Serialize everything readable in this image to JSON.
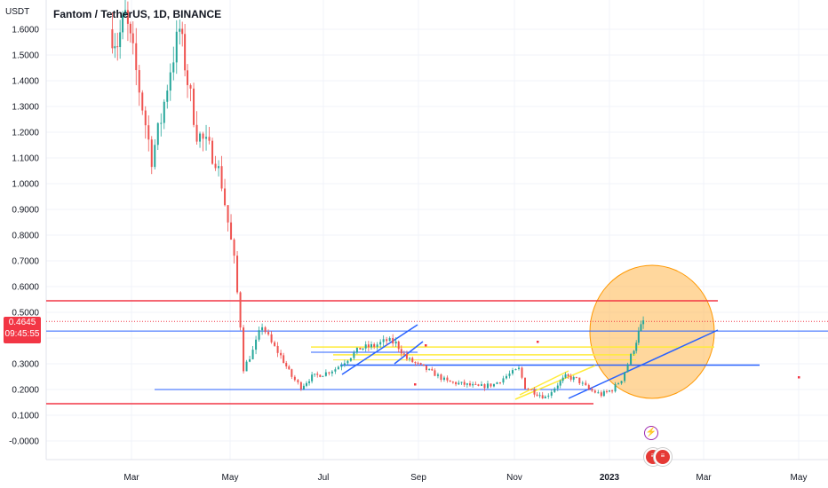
{
  "header": {
    "title": "Fantom / TetherUS, 1D, BINANCE",
    "currency": "USDT"
  },
  "price_tag": {
    "price": "0.4645",
    "countdown": "09:45:55",
    "color": "#f23645"
  },
  "icons": {
    "event": "lightning-icon",
    "flag": "us-flag-icon"
  },
  "colors": {
    "up": "#26a69a",
    "down": "#ef5350",
    "support": "#f23645",
    "trend": "#2962ff",
    "zone": "#ffeb3b",
    "circle": "#ffb74d"
  },
  "chart_data": {
    "type": "candlestick",
    "title": "Fantom / TetherUS, 1D, BINANCE",
    "ylabel": "USDT",
    "ylim": [
      -0.05,
      1.68
    ],
    "y_ticks": [
      "1.6000",
      "1.5000",
      "1.4000",
      "1.3000",
      "1.2000",
      "1.1000",
      "1.0000",
      "0.9000",
      "0.8000",
      "0.7000",
      "0.6000",
      "0.5000",
      "0.4000",
      "0.3000",
      "0.2000",
      "0.1000",
      "-0.0000"
    ],
    "x_ticks": [
      "Mar",
      "May",
      "Jul",
      "Sep",
      "Nov",
      "2023",
      "Mar",
      "May"
    ],
    "grid": true,
    "last_price": 0.4645,
    "price_path": [
      [
        "Feb 15",
        1.6
      ],
      [
        "Feb 20",
        1.55
      ],
      [
        "Feb 25",
        1.65
      ],
      [
        "Mar 2",
        1.5
      ],
      [
        "Mar 8",
        1.3
      ],
      [
        "Mar 14",
        1.1
      ],
      [
        "Mar 20",
        1.25
      ],
      [
        "Mar 26",
        1.45
      ],
      [
        "Apr 1",
        1.6
      ],
      [
        "Apr 6",
        1.4
      ],
      [
        "Apr 12",
        1.2
      ],
      [
        "Apr 18",
        1.15
      ],
      [
        "Apr 24",
        1.1
      ],
      [
        "Apr 28",
        1.0
      ],
      [
        "May 2",
        0.85
      ],
      [
        "May 6",
        0.7
      ],
      [
        "May 10",
        0.45
      ],
      [
        "May 12",
        0.28
      ],
      [
        "May 18",
        0.35
      ],
      [
        "May 24",
        0.45
      ],
      [
        "May 30",
        0.38
      ],
      [
        "Jun 5",
        0.33
      ],
      [
        "Jun 12",
        0.25
      ],
      [
        "Jun 18",
        0.21
      ],
      [
        "Jun 25",
        0.25
      ],
      [
        "Jul 2",
        0.26
      ],
      [
        "Jul 10",
        0.28
      ],
      [
        "Jul 18",
        0.32
      ],
      [
        "Jul 26",
        0.36
      ],
      [
        "Aug 4",
        0.37
      ],
      [
        "Aug 12",
        0.39
      ],
      [
        "Aug 18",
        0.38
      ],
      [
        "Aug 25",
        0.32
      ],
      [
        "Sep 3",
        0.29
      ],
      [
        "Sep 12",
        0.26
      ],
      [
        "Sep 20",
        0.23
      ],
      [
        "Oct 1",
        0.22
      ],
      [
        "Oct 10",
        0.21
      ],
      [
        "Oct 20",
        0.22
      ],
      [
        "Oct 30",
        0.26
      ],
      [
        "Nov 5",
        0.28
      ],
      [
        "Nov 9",
        0.21
      ],
      [
        "Nov 15",
        0.19
      ],
      [
        "Nov 22",
        0.17
      ],
      [
        "Nov 30",
        0.22
      ],
      [
        "Dec 5",
        0.25
      ],
      [
        "Dec 12",
        0.24
      ],
      [
        "Dec 20",
        0.2
      ],
      [
        "Dec 28",
        0.18
      ],
      [
        "Jan 4",
        0.2
      ],
      [
        "Jan 10",
        0.24
      ],
      [
        "Jan 14",
        0.3
      ],
      [
        "Jan 18",
        0.36
      ],
      [
        "Jan 21",
        0.42
      ],
      [
        "Jan 24",
        0.4645
      ]
    ],
    "horizontal_lines": [
      {
        "price": 0.545,
        "color": "#f23645"
      },
      {
        "price": 0.145,
        "color": "#f23645"
      },
      {
        "price": 0.427,
        "color": "#2962ff"
      },
      {
        "price": 0.295,
        "color": "#2962ff"
      },
      {
        "price": 0.2,
        "color": "#2962ff"
      },
      {
        "price": 0.365,
        "color": "#ffeb3b"
      },
      {
        "price": 0.345,
        "color": "#ffeb3b"
      },
      {
        "price": 0.335,
        "color": "#ffeb3b"
      },
      {
        "price": 0.315,
        "color": "#ffeb3b"
      },
      {
        "price": 0.29,
        "color": "#2962ff"
      }
    ]
  }
}
